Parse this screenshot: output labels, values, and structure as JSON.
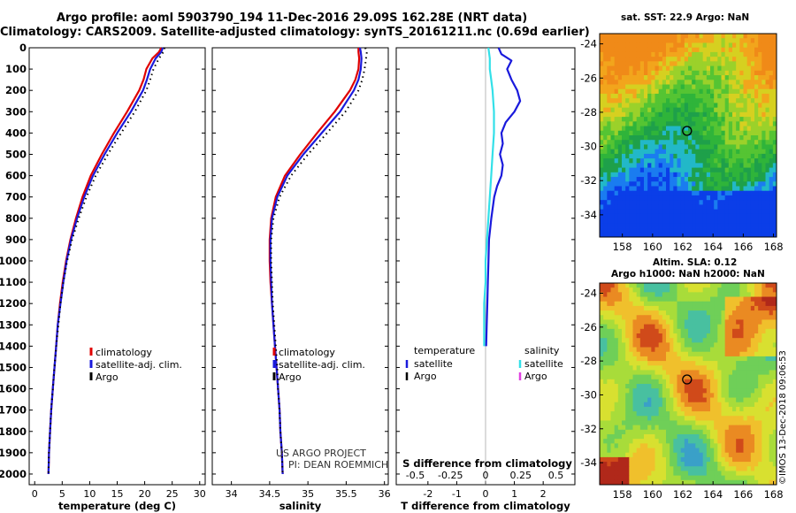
{
  "header": {
    "title_line1": "Argo profile: aoml 5903790_194 11-Dec-2016 29.09S 162.28E (NRT data)",
    "title_line2": "Climatology: CARS2009. Satellite-adjusted climatology: synTS_20161211.nc (0.69d earlier)"
  },
  "credits": {
    "project": "US ARGO PROJECT",
    "pi": "PI: DEAN ROEMMICH"
  },
  "timestamp": "©IMOS 13-Dec-2018 09:06:53",
  "colors": {
    "climatology": "#e00000",
    "satellite_adj": "#1a1adc",
    "argo": "#000000",
    "temperature_diff": "#1a1adc",
    "salinity_diff": "#33e0e8",
    "argo_salinity_diff": "#e040e0"
  },
  "maps": {
    "sst_title": "sat. SST: 22.9 Argo: NaN",
    "sla_title_line1": "Altim. SLA: 0.12",
    "sla_title_line2": "Argo h1000: NaN h2000: NaN",
    "lon_ticks": [
      158,
      160,
      162,
      164,
      166,
      168
    ],
    "lat_ticks": [
      -24,
      -26,
      -28,
      -30,
      -32,
      -34
    ],
    "argo_location": {
      "lon": 162.28,
      "lat": -29.09
    }
  },
  "chart_data": [
    {
      "type": "line",
      "name": "temperature-profile",
      "xlabel": "temperature (deg C)",
      "ylabel": "",
      "xlim": [
        -1,
        31
      ],
      "ylim": [
        2050,
        0
      ],
      "xticks": [
        0,
        5,
        10,
        15,
        20,
        25,
        30
      ],
      "yticks": [
        0,
        100,
        200,
        300,
        400,
        500,
        600,
        700,
        800,
        900,
        1000,
        1100,
        1200,
        1300,
        1400,
        1500,
        1600,
        1700,
        1800,
        1900,
        2000
      ],
      "yticks_labels": [
        "0",
        "100",
        "200",
        "300",
        "400",
        "500",
        "600",
        "700",
        "800",
        "900",
        "1000",
        "1100",
        "1200",
        "1300",
        "1400",
        "1500",
        "1600",
        "1700",
        "1800",
        "1900",
        "2000"
      ],
      "legend": [
        "climatology",
        "satellite-adj. clim.",
        "Argo"
      ],
      "series": [
        {
          "name": "climatology",
          "depth": [
            0,
            20,
            50,
            100,
            150,
            200,
            300,
            400,
            500,
            600,
            700,
            800,
            900,
            1000,
            1100,
            1200,
            1300,
            1400,
            1500,
            1600,
            1700,
            1800,
            1900,
            2000
          ],
          "values": [
            23.0,
            22.6,
            21.4,
            20.3,
            19.8,
            19.0,
            16.8,
            14.4,
            12.2,
            10.2,
            8.7,
            7.5,
            6.5,
            5.7,
            5.1,
            4.6,
            4.2,
            3.9,
            3.6,
            3.3,
            3.0,
            2.8,
            2.6,
            2.5
          ]
        },
        {
          "name": "satellite-adj. clim.",
          "depth": [
            0,
            20,
            50,
            100,
            150,
            200,
            300,
            400,
            500,
            600,
            700,
            800,
            900,
            1000,
            1100,
            1200,
            1300,
            1400,
            1500,
            1600,
            1700,
            1800,
            1900,
            2000
          ],
          "values": [
            23.3,
            23.0,
            22.0,
            21.0,
            20.4,
            19.7,
            17.5,
            15.0,
            12.7,
            10.6,
            9.0,
            7.7,
            6.6,
            5.8,
            5.2,
            4.7,
            4.2,
            3.9,
            3.6,
            3.3,
            3.0,
            2.8,
            2.6,
            2.5
          ]
        },
        {
          "name": "Argo",
          "depth": [
            0,
            20,
            50,
            100,
            150,
            200,
            300,
            400,
            500,
            600,
            700,
            800,
            900,
            1000,
            1100,
            1200,
            1300,
            1400,
            1500,
            1600,
            1700,
            1800,
            1900,
            2000
          ],
          "values": [
            23.6,
            23.4,
            22.6,
            21.6,
            21.0,
            20.3,
            18.2,
            15.7,
            13.3,
            11.1,
            9.4,
            8.0,
            6.8,
            5.9,
            5.2,
            4.7,
            4.3,
            3.9,
            3.6,
            3.3,
            3.0,
            2.8,
            2.6,
            2.5
          ]
        }
      ]
    },
    {
      "type": "line",
      "name": "salinity-profile",
      "xlabel": "salinity",
      "ylabel": "",
      "xlim": [
        33.75,
        36.05
      ],
      "ylim": [
        2050,
        0
      ],
      "xticks": [
        34,
        34.5,
        35,
        35.5,
        36
      ],
      "xticks_labels": [
        "34",
        "34.5",
        "35",
        "35.5",
        "36"
      ],
      "legend": [
        "climatology",
        "satellite-adj. clim.",
        "Argo"
      ],
      "series": [
        {
          "name": "climatology",
          "depth": [
            0,
            20,
            50,
            100,
            150,
            200,
            250,
            300,
            400,
            500,
            600,
            700,
            800,
            900,
            1000,
            1100,
            1200,
            1300,
            1400,
            1500,
            1600,
            1700,
            1800,
            1900,
            2000
          ],
          "values": [
            35.66,
            35.66,
            35.67,
            35.66,
            35.62,
            35.55,
            35.45,
            35.35,
            35.12,
            34.9,
            34.7,
            34.58,
            34.52,
            34.5,
            34.5,
            34.51,
            34.53,
            34.55,
            34.57,
            34.59,
            34.61,
            34.63,
            34.64,
            34.66,
            34.67
          ]
        },
        {
          "name": "satellite-adj. clim.",
          "depth": [
            0,
            20,
            50,
            100,
            150,
            200,
            250,
            300,
            400,
            500,
            600,
            700,
            800,
            900,
            1000,
            1100,
            1200,
            1300,
            1400,
            1500,
            1600,
            1700,
            1800,
            1900,
            2000
          ],
          "values": [
            35.68,
            35.69,
            35.7,
            35.69,
            35.66,
            35.6,
            35.51,
            35.42,
            35.18,
            34.94,
            34.73,
            34.6,
            34.53,
            34.51,
            34.51,
            34.52,
            34.53,
            34.55,
            34.57,
            34.59,
            34.61,
            34.63,
            34.64,
            34.66,
            34.67
          ]
        },
        {
          "name": "Argo",
          "depth": [
            0,
            20,
            50,
            100,
            150,
            200,
            250,
            300,
            400,
            500,
            600,
            700,
            800,
            900,
            1000,
            1100,
            1200,
            1300,
            1400,
            1500,
            1600,
            1700,
            1800,
            1900,
            2000
          ],
          "values": [
            35.75,
            35.77,
            35.76,
            35.74,
            35.71,
            35.66,
            35.58,
            35.49,
            35.25,
            35.0,
            34.78,
            34.63,
            34.55,
            34.52,
            34.52,
            34.53,
            34.54,
            34.56,
            34.58,
            34.6,
            34.61,
            34.63,
            34.64,
            34.66,
            34.67
          ]
        }
      ]
    },
    {
      "type": "line",
      "name": "difference-profile",
      "xlabel": "T difference from climatology",
      "xlabel2": "S difference from climatology",
      "ylabel": "",
      "xlim": [
        -3.1,
        3.1
      ],
      "ylim": [
        2050,
        0
      ],
      "xticks": [
        -2,
        -1,
        0,
        1,
        2
      ],
      "xticks2": [
        -0.5,
        -0.25,
        0,
        0.25,
        0.5
      ],
      "xticks2_labels": [
        "-0.5",
        "-0.25",
        "0",
        "0.25",
        "0.5"
      ],
      "legend_temperature": {
        "heading": "temperature",
        "items": [
          "satellite",
          "Argo"
        ]
      },
      "legend_salinity": {
        "heading": "salinity",
        "items": [
          "satellite",
          "Argo"
        ]
      },
      "series": [
        {
          "name": "satellite",
          "variable": "temperature",
          "depth": [
            0,
            30,
            60,
            100,
            150,
            200,
            250,
            300,
            350,
            400,
            450,
            500,
            550,
            600,
            650,
            700,
            800,
            900,
            1000,
            1100,
            1200,
            1300,
            1400
          ],
          "values": [
            0.45,
            0.55,
            0.9,
            0.75,
            0.9,
            1.1,
            1.2,
            1.0,
            0.7,
            0.55,
            0.6,
            0.5,
            0.6,
            0.55,
            0.4,
            0.3,
            0.2,
            0.12,
            0.1,
            0.08,
            0.06,
            0.04,
            0.02
          ]
        },
        {
          "name": "satellite",
          "variable": "salinity",
          "depth": [
            0,
            50,
            100,
            150,
            200,
            300,
            400,
            500,
            600,
            700,
            800,
            900,
            1000,
            1100,
            1200,
            1300,
            1400
          ],
          "values": [
            0.02,
            0.03,
            0.03,
            0.04,
            0.05,
            0.06,
            0.06,
            0.05,
            0.04,
            0.03,
            0.02,
            0.01,
            0.0,
            0.0,
            -0.01,
            -0.01,
            -0.01
          ]
        }
      ]
    }
  ]
}
